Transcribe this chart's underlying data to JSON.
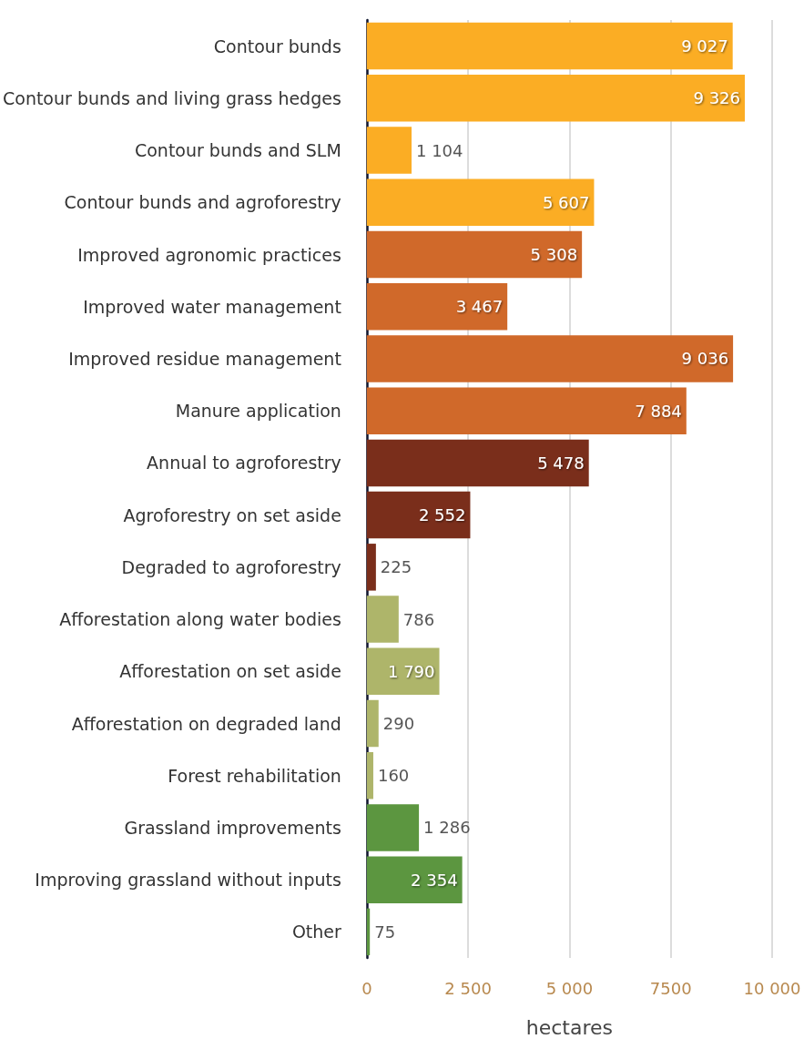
{
  "chart_data": {
    "type": "bar",
    "orientation": "horizontal",
    "xlabel": "hectares",
    "categories": [
      "Contour bunds",
      "Contour bunds and living grass hedges",
      "Contour bunds and SLM",
      "Contour bunds and agroforestry",
      "Improved agronomic practices",
      "Improved water management",
      "Improved residue management",
      "Manure application",
      "Annual to agroforestry",
      "Agroforestry on set aside",
      "Degraded to agroforestry",
      "Afforestation along water bodies",
      "Afforestation on set aside",
      "Afforestation on degraded land",
      "Forest rehabilitation",
      "Grassland improvements",
      "Improving grassland without inputs",
      "Other"
    ],
    "values": [
      9027,
      9326,
      1104,
      5607,
      5308,
      3467,
      9036,
      7884,
      5478,
      2552,
      225,
      786,
      1790,
      290,
      160,
      1286,
      2354,
      75
    ],
    "value_labels": [
      "9 027",
      "9 326",
      "1 104",
      "5 607",
      "5 308",
      "3 467",
      "9 036",
      "7 884",
      "5 478",
      "2 552",
      "225",
      "786",
      "1 790",
      "290",
      "160",
      "1 286",
      "2 354",
      "75"
    ],
    "colors": [
      "#fbad24",
      "#fbad24",
      "#fbad24",
      "#fbad24",
      "#d0692a",
      "#d0692a",
      "#d0692a",
      "#d0692a",
      "#7a2e1b",
      "#7a2e1b",
      "#7a2e1b",
      "#aeb56a",
      "#aeb56a",
      "#aeb56a",
      "#aeb56a",
      "#5c9640",
      "#5c9640",
      "#5c9640"
    ],
    "xlim": [
      0,
      10000
    ],
    "xticks": [
      0,
      {
        "value": 2500,
        "label": "2 500"
      },
      {
        "value": 5000,
        "label": "5 000"
      },
      7500,
      {
        "value": 10000,
        "label": "10 000"
      }
    ],
    "grid": "x"
  }
}
